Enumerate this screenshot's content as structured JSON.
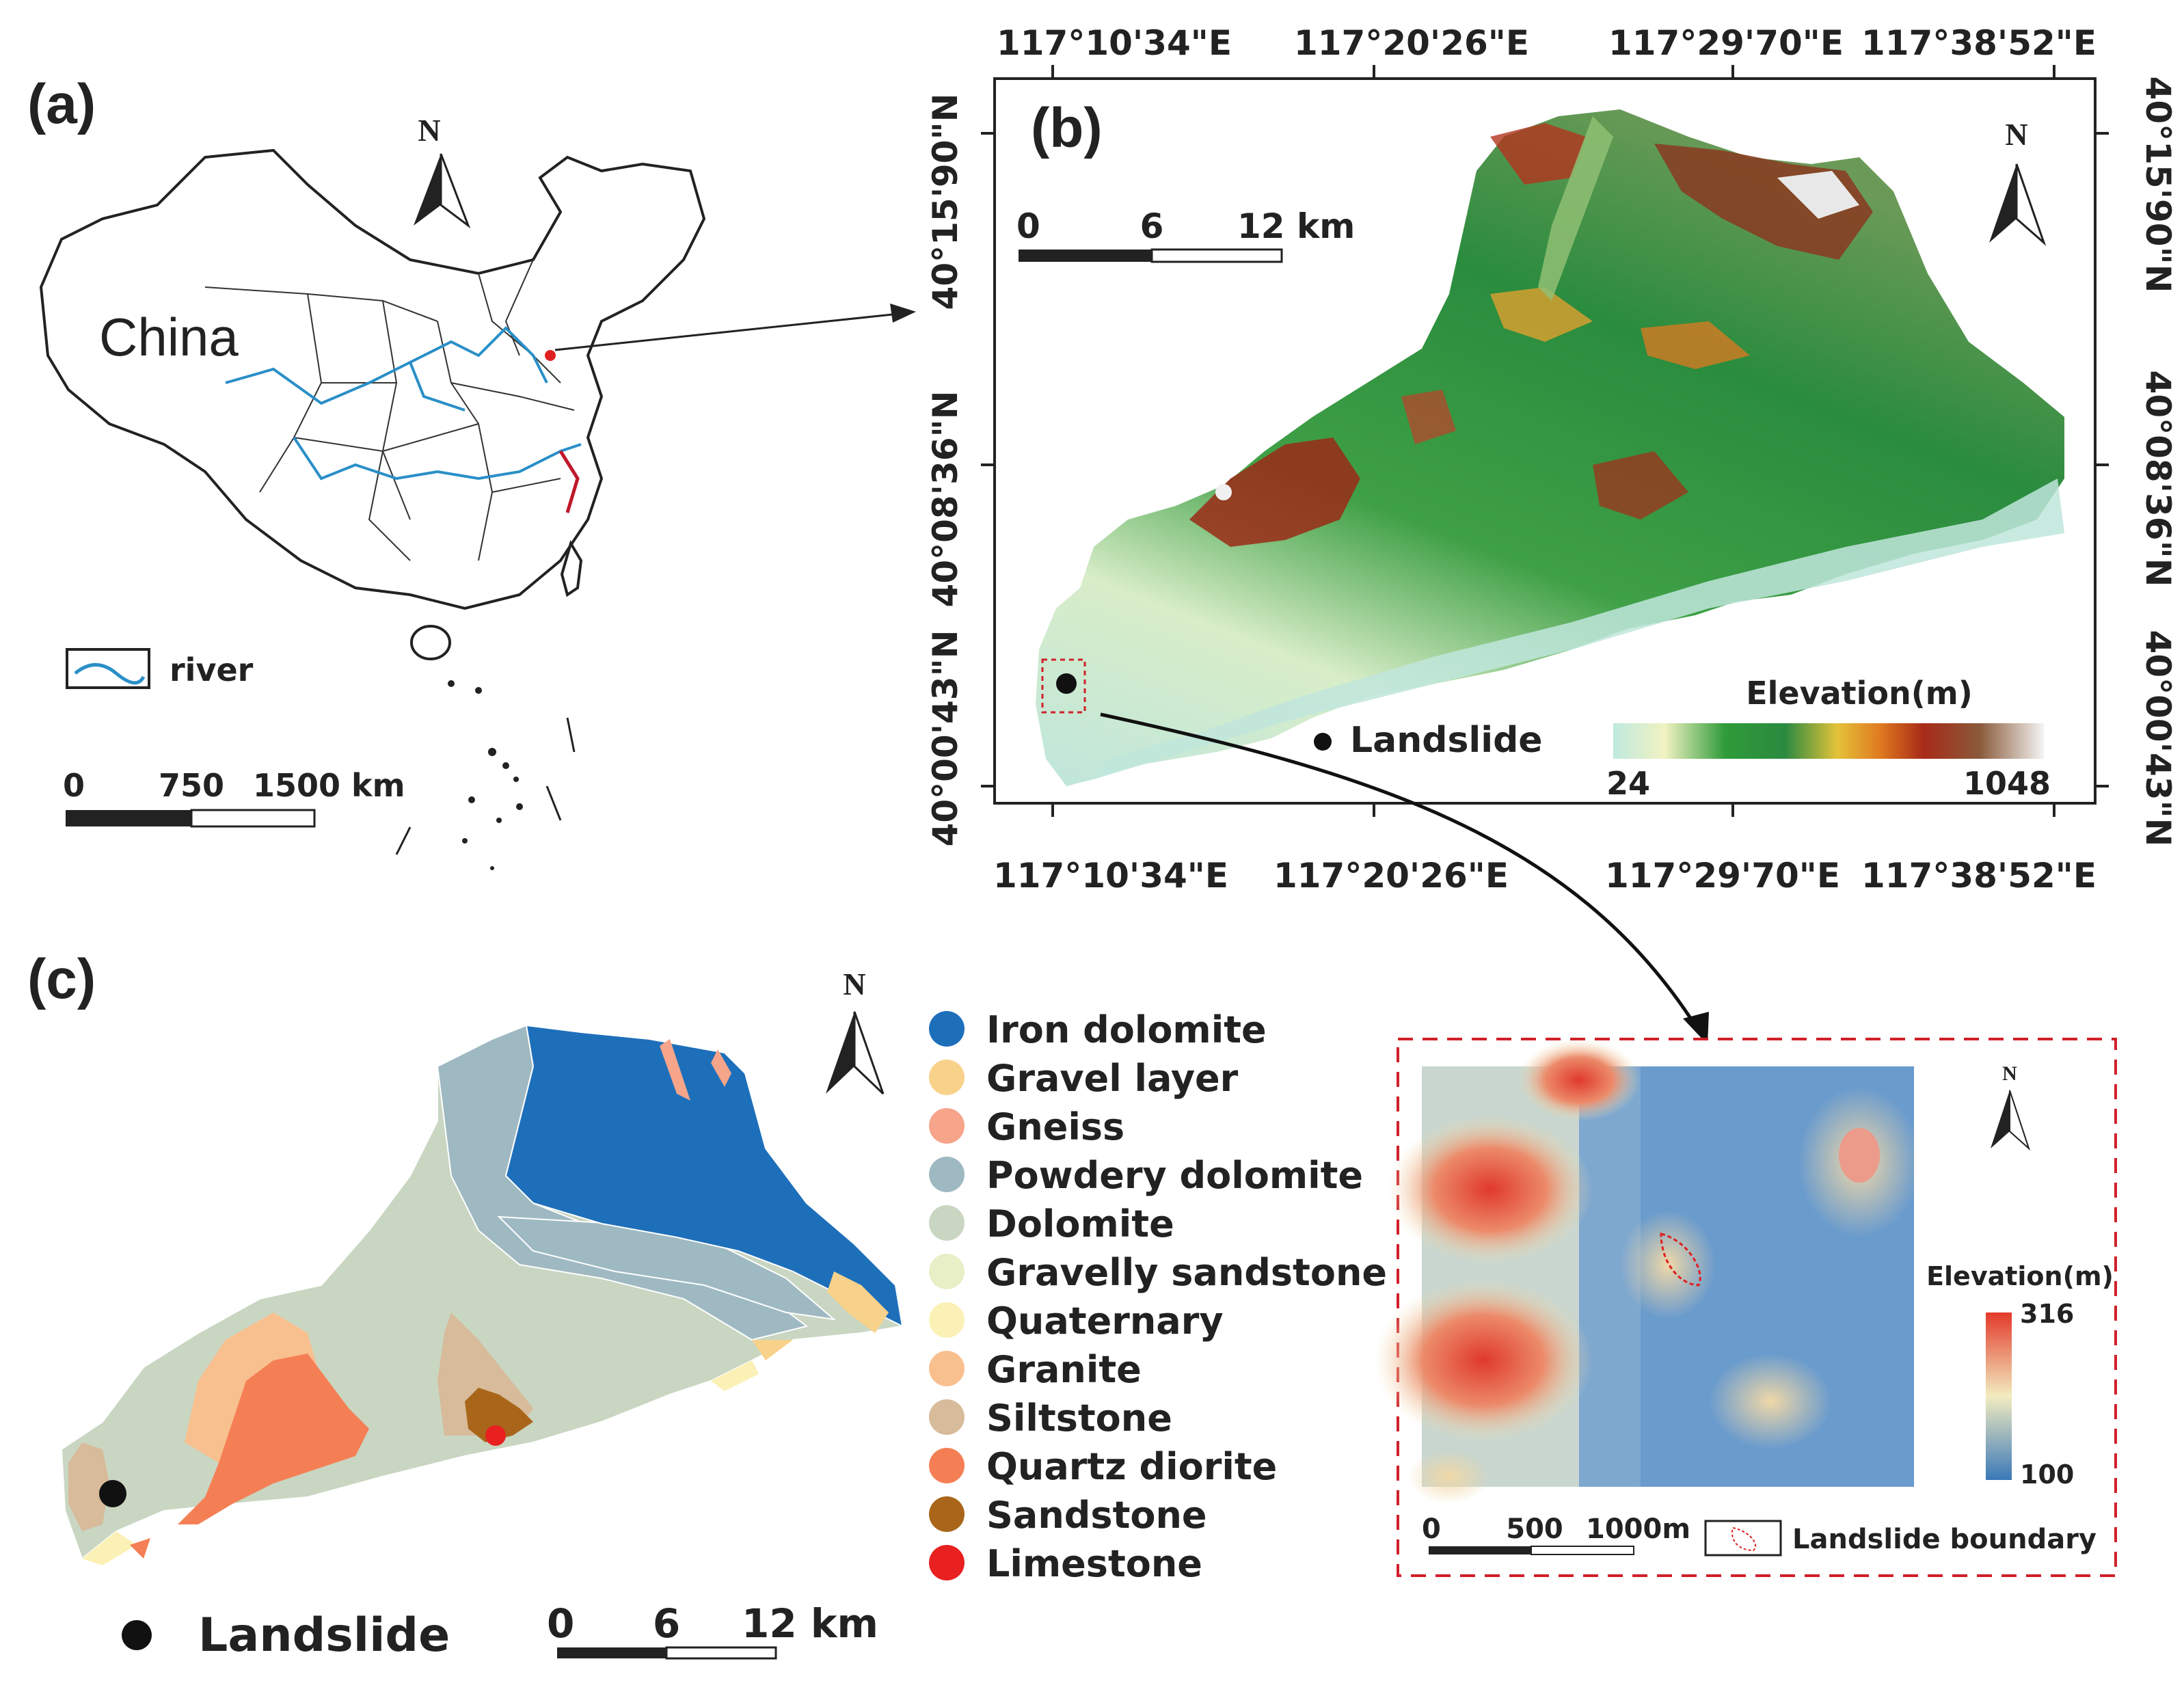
{
  "figure": {
    "panel_a": {
      "label": "(a)",
      "country": "China",
      "north": "N",
      "legend_river": "river",
      "scale": [
        "0",
        "750",
        "1500 km"
      ]
    },
    "panel_b": {
      "label": "(b)",
      "north": "N",
      "top_lon": [
        "117°10'34\"E",
        "117°20'26\"E",
        "117°29'70\"E",
        "117°38'52\"E"
      ],
      "bottom_lon": [
        "117°10'34\"E",
        "117°20'26\"E",
        "117°29'70\"E",
        "117°38'52\"E"
      ],
      "lat": [
        "40°15'90\"N",
        "40°08'36\"N",
        "40°00'43\"N"
      ],
      "scale": [
        "0",
        "6",
        "12 km"
      ],
      "landslide_label": "Landslide",
      "elevation_title": "Elevation(m)",
      "elevation_min": "24",
      "elevation_max": "1048"
    },
    "panel_c": {
      "label": "(c)",
      "north": "N",
      "legend": [
        {
          "name": "Iron dolomite",
          "color": "#1e6fba"
        },
        {
          "name": "Gravel layer",
          "color": "#f8d28a"
        },
        {
          "name": "Gneiss",
          "color": "#f6a48a"
        },
        {
          "name": "Powdery dolomite",
          "color": "#9fb9c2"
        },
        {
          "name": "Dolomite",
          "color": "#c9d6c2"
        },
        {
          "name": "Gravelly sandstone",
          "color": "#e8efc6"
        },
        {
          "name": "Quaternary",
          "color": "#fbf1b6"
        },
        {
          "name": "Granite",
          "color": "#f9c08f"
        },
        {
          "name": "Siltstone",
          "color": "#d7bb9a"
        },
        {
          "name": "Quartz diorite",
          "color": "#f57f55"
        },
        {
          "name": "Sandstone",
          "color": "#a9661a"
        },
        {
          "name": "Limestone",
          "color": "#e82020"
        }
      ],
      "landslide_label": "Landslide",
      "scale": [
        "0",
        "6",
        "12 km"
      ]
    },
    "inset": {
      "north": "N",
      "elevation_title": "Elevation(m)",
      "elevation_max": "316",
      "elevation_min": "100",
      "scale": [
        "0",
        "500",
        "1000m"
      ],
      "boundary_label": "Landslide boundary"
    }
  }
}
